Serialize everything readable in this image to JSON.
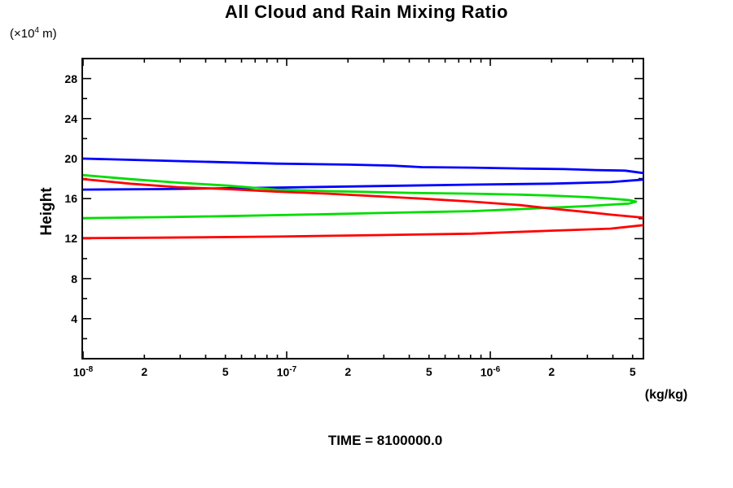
{
  "title": "All Cloud and Rain Mixing Ratio",
  "y_unit": {
    "prefix": "(×10",
    "sup": "4",
    "suffix": " m)"
  },
  "y_axis_label": "Height",
  "x_unit_label": "(kg/kg)",
  "time_label": "TIME = 8100000.0",
  "colors": {
    "frame": "#000000",
    "series_blue": "#0000ff",
    "series_green": "#00dd00",
    "series_red": "#ff0000"
  },
  "chart_data": {
    "type": "line",
    "title": "All Cloud and Rain Mixing Ratio",
    "xlabel": "(kg/kg)",
    "ylabel": "Height (x10^4 m)",
    "xscale": "log",
    "xlim": [
      1e-08,
      5.65e-06
    ],
    "ylim": [
      0,
      30
    ],
    "grid": false,
    "legend": "none",
    "x_ticks": [
      {
        "base": "10",
        "exp": "-8",
        "value": 1e-08
      },
      {
        "base": "2",
        "exp": "",
        "value": 2e-08
      },
      {
        "base": "5",
        "exp": "",
        "value": 5e-08
      },
      {
        "base": "10",
        "exp": "-7",
        "value": 1e-07
      },
      {
        "base": "2",
        "exp": "",
        "value": 2e-07
      },
      {
        "base": "5",
        "exp": "",
        "value": 5e-07
      },
      {
        "base": "10",
        "exp": "-6",
        "value": 1e-06
      },
      {
        "base": "2",
        "exp": "",
        "value": 2e-06
      },
      {
        "base": "5",
        "exp": "",
        "value": 5e-06
      }
    ],
    "y_ticks": [
      {
        "label": "4",
        "value": 4
      },
      {
        "label": "8",
        "value": 8
      },
      {
        "label": "12",
        "value": 12
      },
      {
        "label": "16",
        "value": 16
      },
      {
        "label": "20",
        "value": 20
      },
      {
        "label": "24",
        "value": 24
      },
      {
        "label": "28",
        "value": 28
      }
    ],
    "series": [
      {
        "name": "blue-mixing-ratio-upper-branch",
        "color": "#0000ff",
        "points": [
          [
            1e-08,
            20.0
          ],
          [
            3e-08,
            19.75
          ],
          [
            8.9e-08,
            19.5
          ],
          [
            2e-07,
            19.4
          ],
          [
            3.3e-07,
            19.3
          ],
          [
            4.6e-07,
            19.15
          ],
          [
            8.1e-07,
            19.1
          ],
          [
            1.5e-06,
            19.0
          ],
          [
            2.3e-06,
            18.95
          ],
          [
            3.3e-06,
            18.85
          ],
          [
            4.6e-06,
            18.8
          ],
          [
            5.65e-06,
            18.55
          ]
        ]
      },
      {
        "name": "blue-mixing-ratio-lower-branch",
        "color": "#0000ff",
        "points": [
          [
            5.65e-06,
            17.9
          ],
          [
            3.9e-06,
            17.65
          ],
          [
            2e-06,
            17.5
          ],
          [
            8.1e-07,
            17.4
          ],
          [
            2.7e-07,
            17.25
          ],
          [
            8.9e-08,
            17.1
          ],
          [
            2.4e-08,
            16.95
          ],
          [
            1e-08,
            16.9
          ]
        ]
      },
      {
        "name": "green-mixing-ratio-profile",
        "color": "#00dd00",
        "points": [
          [
            1e-08,
            18.35
          ],
          [
            1.7e-08,
            17.95
          ],
          [
            2.9e-08,
            17.6
          ],
          [
            5.1e-08,
            17.3
          ],
          [
            8.9e-08,
            16.9
          ],
          [
            1.6e-07,
            16.75
          ],
          [
            2.7e-07,
            16.65
          ],
          [
            4.6e-07,
            16.55
          ],
          [
            8.1e-07,
            16.5
          ],
          [
            1.4e-06,
            16.4
          ],
          [
            2e-06,
            16.3
          ],
          [
            3e-06,
            16.15
          ],
          [
            3.9e-06,
            16.0
          ],
          [
            4.8e-06,
            15.85
          ],
          [
            5.2e-06,
            15.7
          ],
          [
            4.8e-06,
            15.5
          ],
          [
            3.9e-06,
            15.4
          ],
          [
            3e-06,
            15.25
          ],
          [
            2e-06,
            15.1
          ],
          [
            1.4e-06,
            14.95
          ],
          [
            8.1e-07,
            14.75
          ],
          [
            4.6e-07,
            14.65
          ],
          [
            2.7e-07,
            14.55
          ],
          [
            1.6e-07,
            14.45
          ],
          [
            8.9e-08,
            14.35
          ],
          [
            5.1e-08,
            14.25
          ],
          [
            2.4e-08,
            14.15
          ],
          [
            1e-08,
            14.05
          ]
        ]
      },
      {
        "name": "red-mixing-ratio-upper-branch",
        "color": "#ff0000",
        "points": [
          [
            1e-08,
            17.95
          ],
          [
            1.7e-08,
            17.5
          ],
          [
            2.9e-08,
            17.15
          ],
          [
            5.1e-08,
            16.95
          ],
          [
            8.9e-08,
            16.7
          ],
          [
            1.6e-07,
            16.5
          ],
          [
            2.7e-07,
            16.25
          ],
          [
            4.6e-07,
            16.0
          ],
          [
            8.1e-07,
            15.7
          ],
          [
            1.4e-06,
            15.35
          ],
          [
            2e-06,
            15.0
          ],
          [
            3e-06,
            14.65
          ],
          [
            3.9e-06,
            14.4
          ],
          [
            5.65e-06,
            14.1
          ]
        ]
      },
      {
        "name": "red-mixing-ratio-lower-branch",
        "color": "#ff0000",
        "points": [
          [
            5.65e-06,
            13.35
          ],
          [
            3.9e-06,
            13.0
          ],
          [
            2e-06,
            12.8
          ],
          [
            8.1e-07,
            12.5
          ],
          [
            2.7e-07,
            12.35
          ],
          [
            8.9e-08,
            12.2
          ],
          [
            2.4e-08,
            12.1
          ],
          [
            1e-08,
            12.05
          ]
        ]
      }
    ]
  }
}
